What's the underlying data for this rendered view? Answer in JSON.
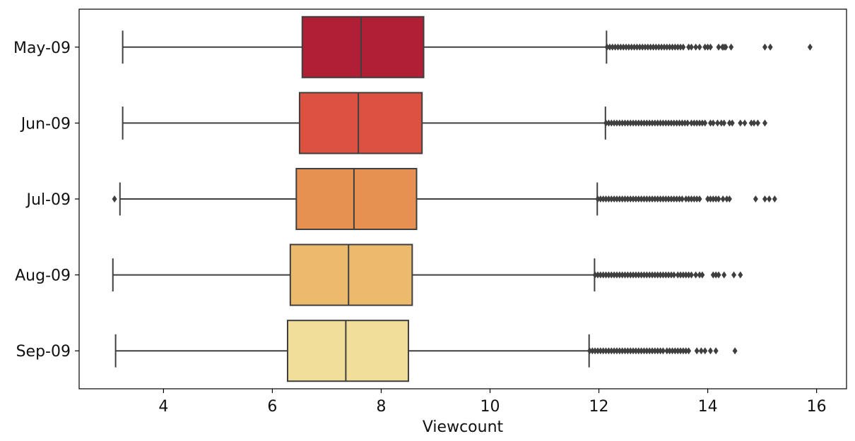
{
  "chart_data": {
    "type": "boxplot",
    "orientation": "horizontal",
    "xlabel": "Viewcount",
    "ylabel": "",
    "xlim": [
      2.45,
      16.55
    ],
    "xticks": [
      4,
      6,
      8,
      10,
      12,
      14,
      16
    ],
    "grid": false,
    "legend": "none",
    "categories": [
      "May-09",
      "Jun-09",
      "Jul-09",
      "Aug-09",
      "Sep-09"
    ],
    "boxes": [
      {
        "category": "May-09",
        "color": "#b11f35",
        "whisker_low": 3.25,
        "q1": 6.55,
        "median": 7.63,
        "q3": 8.78,
        "whisker_high": 12.14,
        "outliers": [
          12.15,
          12.2,
          12.25,
          12.3,
          12.35,
          12.4,
          12.45,
          12.5,
          12.55,
          12.6,
          12.65,
          12.7,
          12.75,
          12.8,
          12.85,
          12.9,
          12.95,
          13.0,
          13.05,
          13.1,
          13.15,
          13.2,
          13.25,
          13.3,
          13.35,
          13.4,
          13.45,
          13.5,
          13.55,
          13.65,
          13.7,
          13.78,
          13.85,
          13.95,
          14.0,
          14.05,
          14.2,
          14.27,
          14.3,
          14.33,
          14.43,
          15.05,
          15.15,
          15.88
        ]
      },
      {
        "category": "Jun-09",
        "color": "#dc5140",
        "whisker_low": 3.25,
        "q1": 6.5,
        "median": 7.58,
        "q3": 8.75,
        "whisker_high": 12.12,
        "outliers": [
          12.13,
          12.18,
          12.23,
          12.28,
          12.33,
          12.38,
          12.43,
          12.48,
          12.53,
          12.58,
          12.63,
          12.68,
          12.73,
          12.78,
          12.83,
          12.88,
          12.93,
          12.98,
          13.03,
          13.08,
          13.13,
          13.18,
          13.23,
          13.28,
          13.33,
          13.38,
          13.43,
          13.48,
          13.53,
          13.58,
          13.63,
          13.7,
          13.75,
          13.8,
          13.85,
          13.9,
          13.95,
          14.05,
          14.1,
          14.18,
          14.25,
          14.3,
          14.4,
          14.45,
          14.6,
          14.68,
          14.8,
          14.85,
          14.92,
          15.05
        ]
      },
      {
        "category": "Jul-09",
        "color": "#e69152",
        "whisker_low": 3.2,
        "q1": 6.44,
        "median": 7.5,
        "q3": 8.65,
        "whisker_high": 11.97,
        "outliers": [
          3.1,
          11.98,
          12.03,
          12.08,
          12.13,
          12.18,
          12.23,
          12.28,
          12.33,
          12.38,
          12.43,
          12.48,
          12.53,
          12.58,
          12.63,
          12.68,
          12.73,
          12.78,
          12.83,
          12.88,
          12.93,
          12.98,
          13.03,
          13.08,
          13.13,
          13.18,
          13.23,
          13.28,
          13.33,
          13.38,
          13.43,
          13.48,
          13.53,
          13.6,
          13.65,
          13.7,
          13.75,
          13.8,
          13.85,
          14.0,
          14.05,
          14.1,
          14.15,
          14.2,
          14.28,
          14.35,
          14.4,
          14.88,
          15.05,
          15.13,
          15.23
        ]
      },
      {
        "category": "Aug-09",
        "color": "#ebba6c",
        "whisker_low": 3.07,
        "q1": 6.33,
        "median": 7.4,
        "q3": 8.57,
        "whisker_high": 11.92,
        "outliers": [
          11.93,
          11.98,
          12.03,
          12.08,
          12.13,
          12.18,
          12.23,
          12.28,
          12.33,
          12.38,
          12.43,
          12.48,
          12.53,
          12.58,
          12.63,
          12.68,
          12.73,
          12.78,
          12.83,
          12.88,
          12.93,
          12.98,
          13.03,
          13.08,
          13.13,
          13.18,
          13.23,
          13.28,
          13.33,
          13.38,
          13.45,
          13.5,
          13.55,
          13.6,
          13.65,
          13.7,
          13.78,
          13.85,
          13.9,
          14.1,
          14.15,
          14.2,
          14.3,
          14.48,
          14.6
        ]
      },
      {
        "category": "Sep-09",
        "color": "#f1de9b",
        "whisker_low": 3.12,
        "q1": 6.28,
        "median": 7.35,
        "q3": 8.5,
        "whisker_high": 11.82,
        "outliers": [
          11.83,
          11.88,
          11.93,
          11.98,
          12.03,
          12.08,
          12.13,
          12.18,
          12.23,
          12.28,
          12.33,
          12.38,
          12.43,
          12.48,
          12.53,
          12.58,
          12.63,
          12.68,
          12.73,
          12.78,
          12.83,
          12.88,
          12.93,
          12.98,
          13.03,
          13.08,
          13.13,
          13.18,
          13.25,
          13.3,
          13.35,
          13.4,
          13.45,
          13.5,
          13.55,
          13.6,
          13.65,
          13.8,
          13.88,
          13.95,
          14.05,
          14.15,
          14.5
        ]
      }
    ]
  }
}
